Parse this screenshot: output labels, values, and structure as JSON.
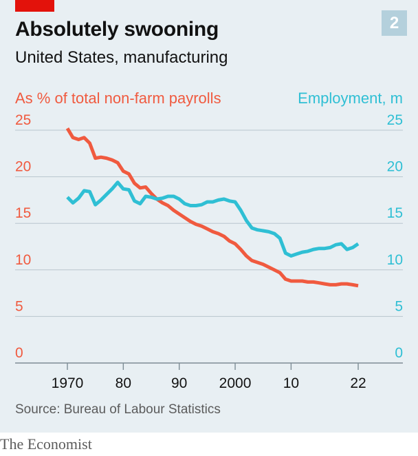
{
  "header": {
    "title": "Absolutely swooning",
    "subtitle": "United States, manufacturing",
    "badge": "2"
  },
  "source": "Source: Bureau of Labour Statistics",
  "brand": "The Economist",
  "colors": {
    "payrolls": "#f05a3f",
    "employment": "#2fbfd4",
    "grid": "#b9c6ce",
    "background": "#e8eff3",
    "brand_red": "#e3120b"
  },
  "chart_data": {
    "type": "line",
    "left_axis_label": "As % of total non-farm payrolls",
    "right_axis_label": "Employment, m",
    "ylim": [
      0,
      25
    ],
    "xlim": [
      1970,
      2022
    ],
    "y_ticks": [
      "0",
      "5",
      "10",
      "15",
      "20",
      "25"
    ],
    "x_ticks": [
      {
        "value": 1970,
        "label": "1970"
      },
      {
        "value": 1980,
        "label": "80"
      },
      {
        "value": 1990,
        "label": "90"
      },
      {
        "value": 2000,
        "label": "2000"
      },
      {
        "value": 2010,
        "label": "10"
      },
      {
        "value": 2022,
        "label": "22"
      }
    ],
    "grid": true,
    "series": [
      {
        "axis": "left",
        "color": "#f05a3f",
        "x": [
          1970,
          1971,
          1972,
          1973,
          1974,
          1975,
          1976,
          1977,
          1978,
          1979,
          1980,
          1981,
          1982,
          1983,
          1984,
          1985,
          1986,
          1987,
          1988,
          1989,
          1990,
          1991,
          1992,
          1993,
          1994,
          1995,
          1996,
          1997,
          1998,
          1999,
          2000,
          2001,
          2002,
          2003,
          2004,
          2005,
          2006,
          2007,
          2008,
          2009,
          2010,
          2011,
          2012,
          2013,
          2014,
          2015,
          2016,
          2017,
          2018,
          2019,
          2020,
          2021,
          2022
        ],
        "values": [
          25.2,
          24.2,
          24.0,
          24.2,
          23.6,
          22.0,
          22.1,
          22.0,
          21.8,
          21.5,
          20.6,
          20.3,
          19.3,
          18.8,
          18.9,
          18.2,
          17.6,
          17.2,
          16.9,
          16.4,
          16.0,
          15.6,
          15.2,
          14.9,
          14.7,
          14.4,
          14.1,
          13.9,
          13.6,
          13.1,
          12.8,
          12.2,
          11.5,
          11.0,
          10.8,
          10.6,
          10.3,
          10.0,
          9.7,
          9.0,
          8.8,
          8.8,
          8.8,
          8.7,
          8.7,
          8.6,
          8.5,
          8.4,
          8.4,
          8.5,
          8.5,
          8.4,
          8.3
        ]
      },
      {
        "axis": "right",
        "color": "#2fbfd4",
        "x": [
          1970,
          1971,
          1972,
          1973,
          1974,
          1975,
          1976,
          1977,
          1978,
          1979,
          1980,
          1981,
          1982,
          1983,
          1984,
          1985,
          1986,
          1987,
          1988,
          1989,
          1990,
          1991,
          1992,
          1993,
          1994,
          1995,
          1996,
          1997,
          1998,
          1999,
          2000,
          2001,
          2002,
          2003,
          2004,
          2005,
          2006,
          2007,
          2008,
          2009,
          2010,
          2011,
          2012,
          2013,
          2014,
          2015,
          2016,
          2017,
          2018,
          2019,
          2020,
          2021,
          2022
        ],
        "values": [
          17.8,
          17.2,
          17.7,
          18.5,
          18.4,
          17.0,
          17.5,
          18.1,
          18.7,
          19.4,
          18.7,
          18.6,
          17.4,
          17.1,
          17.9,
          17.8,
          17.6,
          17.7,
          17.9,
          17.9,
          17.6,
          17.1,
          16.9,
          16.9,
          17.0,
          17.3,
          17.3,
          17.5,
          17.6,
          17.4,
          17.3,
          16.4,
          15.3,
          14.5,
          14.3,
          14.2,
          14.1,
          13.9,
          13.4,
          11.8,
          11.5,
          11.7,
          11.9,
          12.0,
          12.2,
          12.3,
          12.3,
          12.4,
          12.7,
          12.8,
          12.2,
          12.4,
          12.8
        ]
      }
    ]
  }
}
